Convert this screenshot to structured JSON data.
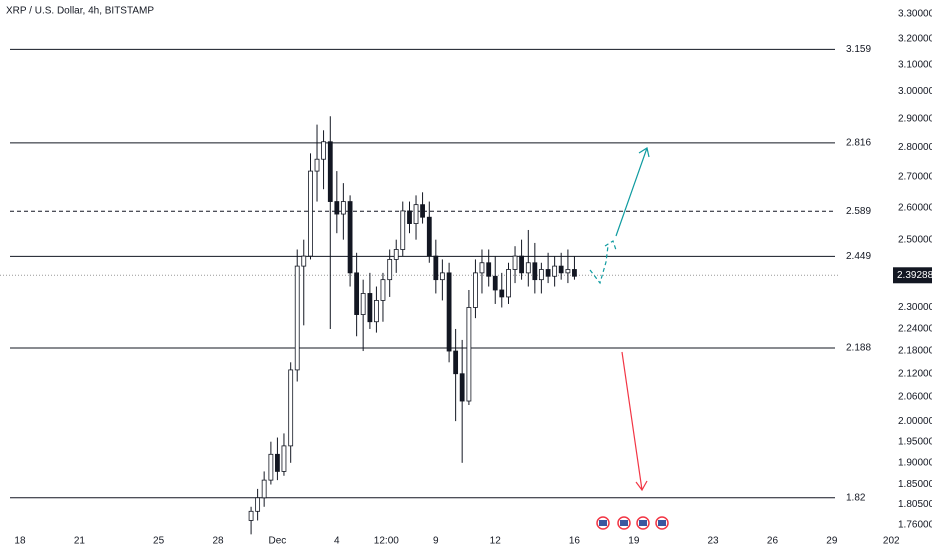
{
  "chart_data": {
    "type": "candlestick",
    "title": "XRP / U.S. Dollar, 4h, BITSTAMP",
    "log_scale": true,
    "xlim": [
      -1.01,
      41.31
    ],
    "ylim": [
      1.7386,
      3.357
    ],
    "xticks": [
      {
        "value": 0,
        "label": "18"
      },
      {
        "value": 3,
        "label": "21"
      },
      {
        "value": 7,
        "label": "25"
      },
      {
        "value": 10,
        "label": "28"
      },
      {
        "value": 13,
        "label": "Dec"
      },
      {
        "value": 16,
        "label": "4"
      },
      {
        "value": 18.5,
        "label": "12:00"
      },
      {
        "value": 21,
        "label": "9"
      },
      {
        "value": 24,
        "label": "12"
      },
      {
        "value": 28,
        "label": "16"
      },
      {
        "value": 31,
        "label": "19"
      },
      {
        "value": 35,
        "label": "23"
      },
      {
        "value": 38,
        "label": "26"
      },
      {
        "value": 41,
        "label": "29"
      },
      {
        "value": 44,
        "label": "202"
      }
    ],
    "yticks": [
      {
        "value": 3.3,
        "label": "3.30000"
      },
      {
        "value": 3.2,
        "label": "3.20000"
      },
      {
        "value": 3.1,
        "label": "3.10000"
      },
      {
        "value": 3.0,
        "label": "3.00000"
      },
      {
        "value": 2.9,
        "label": "2.90000"
      },
      {
        "value": 2.8,
        "label": "2.80000"
      },
      {
        "value": 2.7,
        "label": "2.70000"
      },
      {
        "value": 2.6,
        "label": "2.60000"
      },
      {
        "value": 2.5,
        "label": "2.50000"
      },
      {
        "value": 2.3,
        "label": "2.30000"
      },
      {
        "value": 2.24,
        "label": "2.24000"
      },
      {
        "value": 2.18,
        "label": "2.18000"
      },
      {
        "value": 2.12,
        "label": "2.12000"
      },
      {
        "value": 2.06,
        "label": "2.06000"
      },
      {
        "value": 2.0,
        "label": "2.00000"
      },
      {
        "value": 1.95,
        "label": "1.95000"
      },
      {
        "value": 1.9,
        "label": "1.90000"
      },
      {
        "value": 1.85,
        "label": "1.85000"
      },
      {
        "value": 1.805,
        "label": "1.80500"
      },
      {
        "value": 1.76,
        "label": "1.76000"
      }
    ],
    "last_price": 2.39288,
    "levels": [
      {
        "value": 3.159
      },
      {
        "value": 2.816
      },
      {
        "value": 2.589,
        "dashed": true
      },
      {
        "value": 2.449
      },
      {
        "value": 2.188
      },
      {
        "value": 1.82
      }
    ],
    "x": [
      11.67,
      12,
      12.33,
      12.67,
      13,
      13.33,
      13.67,
      14,
      14.33,
      14.67,
      15,
      15.33,
      15.67,
      16,
      16.33,
      16.67,
      17,
      17.33,
      17.67,
      18,
      18.33,
      18.67,
      19,
      19.33,
      19.67,
      20,
      20.33,
      20.67,
      21,
      21.33,
      21.67,
      22,
      22.33,
      22.67,
      23,
      23.33,
      23.67,
      24,
      24.33,
      24.67,
      25,
      25.33,
      25.67,
      26,
      26.33,
      26.67,
      27,
      27.33,
      27.67,
      28
    ],
    "open": [
      1.77,
      1.79,
      1.82,
      1.86,
      1.92,
      1.88,
      1.94,
      2.13,
      2.42,
      2.45,
      2.72,
      2.76,
      2.82,
      2.62,
      2.58,
      2.62,
      2.4,
      2.28,
      2.34,
      2.26,
      2.32,
      2.38,
      2.44,
      2.47,
      2.59,
      2.55,
      2.61,
      2.57,
      2.45,
      2.38,
      2.4,
      2.18,
      2.12,
      2.05,
      2.3,
      2.4,
      2.43,
      2.39,
      2.35,
      2.33,
      2.41,
      2.45,
      2.4,
      2.43,
      2.38,
      2.41,
      2.39,
      2.42,
      2.4,
      2.41
    ],
    "high": [
      1.8,
      1.84,
      1.88,
      1.95,
      1.96,
      1.97,
      2.15,
      2.47,
      2.5,
      2.78,
      2.88,
      2.86,
      2.91,
      2.72,
      2.68,
      2.64,
      2.46,
      2.38,
      2.4,
      2.36,
      2.4,
      2.47,
      2.5,
      2.62,
      2.62,
      2.64,
      2.65,
      2.62,
      2.5,
      2.44,
      2.43,
      2.24,
      2.21,
      2.35,
      2.44,
      2.47,
      2.47,
      2.45,
      2.4,
      2.43,
      2.48,
      2.5,
      2.53,
      2.49,
      2.43,
      2.46,
      2.45,
      2.46,
      2.47,
      2.45
    ],
    "low": [
      1.74,
      1.77,
      1.8,
      1.85,
      1.86,
      1.87,
      1.9,
      2.1,
      2.25,
      2.44,
      2.62,
      2.66,
      2.24,
      2.52,
      2.5,
      2.36,
      2.22,
      2.18,
      2.24,
      2.23,
      2.26,
      2.33,
      2.4,
      2.45,
      2.52,
      2.5,
      2.55,
      2.43,
      2.34,
      2.32,
      2.15,
      2.0,
      1.9,
      2.04,
      2.27,
      2.34,
      2.36,
      2.31,
      2.3,
      2.31,
      2.37,
      2.38,
      2.36,
      2.34,
      2.34,
      2.37,
      2.36,
      2.38,
      2.37,
      2.38
    ],
    "close": [
      1.79,
      1.82,
      1.86,
      1.92,
      1.88,
      1.94,
      2.13,
      2.42,
      2.45,
      2.72,
      2.76,
      2.82,
      2.62,
      2.58,
      2.62,
      2.4,
      2.28,
      2.34,
      2.26,
      2.32,
      2.38,
      2.44,
      2.47,
      2.59,
      2.55,
      2.61,
      2.57,
      2.45,
      2.38,
      2.4,
      2.18,
      2.12,
      2.05,
      2.3,
      2.4,
      2.43,
      2.39,
      2.35,
      2.33,
      2.41,
      2.45,
      2.4,
      2.43,
      2.38,
      2.41,
      2.39,
      2.42,
      2.4,
      2.41,
      2.39
    ]
  }
}
